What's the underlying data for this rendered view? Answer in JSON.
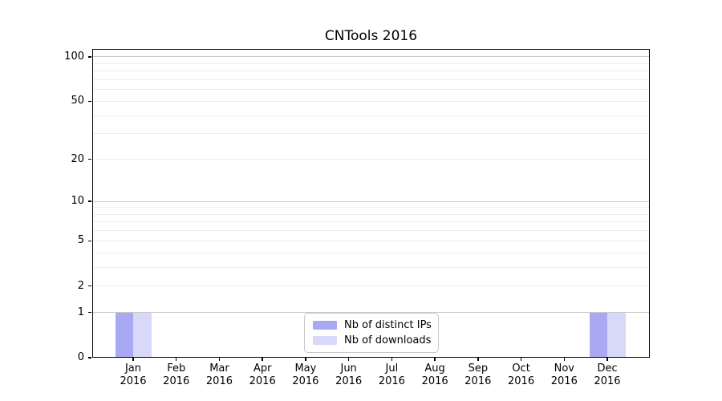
{
  "chart_data": {
    "type": "bar",
    "title": "CNTools 2016",
    "x_labels": [
      [
        "Jan",
        "2016"
      ],
      [
        "Feb",
        "2016"
      ],
      [
        "Mar",
        "2016"
      ],
      [
        "Apr",
        "2016"
      ],
      [
        "May",
        "2016"
      ],
      [
        "Jun",
        "2016"
      ],
      [
        "Jul",
        "2016"
      ],
      [
        "Aug",
        "2016"
      ],
      [
        "Sep",
        "2016"
      ],
      [
        "Oct",
        "2016"
      ],
      [
        "Nov",
        "2016"
      ],
      [
        "Dec",
        "2016"
      ]
    ],
    "series": [
      {
        "name": "Nb of distinct IPs",
        "color": "#a9a9f3",
        "values": [
          1,
          0,
          0,
          0,
          0,
          0,
          0,
          0,
          0,
          0,
          0,
          1
        ]
      },
      {
        "name": "Nb of downloads",
        "color": "#d8d8f9",
        "values": [
          1,
          0,
          0,
          0,
          0,
          0,
          0,
          0,
          0,
          0,
          0,
          1
        ]
      }
    ],
    "y_ticks": [
      0,
      1,
      2,
      5,
      10,
      20,
      50,
      100
    ],
    "y_major_gridlines": [
      1,
      10,
      100
    ],
    "y_minor_gridlines": [
      2,
      3,
      4,
      5,
      6,
      7,
      8,
      9,
      20,
      30,
      40,
      50,
      60,
      70,
      80,
      90
    ],
    "y_scale": "ln(1+y)",
    "y_axis_top_value": 113,
    "ylim": [
      0,
      113
    ],
    "grid": true,
    "legend_position": "lower center",
    "colors": {
      "major_grid": "#c9c9c9",
      "minor_grid": "#ededed",
      "axis": "#000000",
      "background": "#ffffff"
    }
  }
}
